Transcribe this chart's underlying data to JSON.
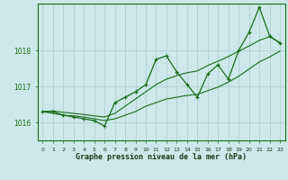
{
  "x": [
    0,
    1,
    2,
    3,
    4,
    5,
    6,
    7,
    8,
    9,
    10,
    11,
    12,
    13,
    14,
    15,
    16,
    17,
    18,
    19,
    20,
    21,
    22,
    23
  ],
  "y_main": [
    1016.3,
    1016.3,
    1016.2,
    1016.15,
    1016.1,
    1016.05,
    1015.9,
    1016.55,
    1016.7,
    1016.85,
    1017.05,
    1017.75,
    1017.85,
    1017.4,
    1017.05,
    1016.7,
    1017.35,
    1017.6,
    1017.2,
    1018.0,
    1018.5,
    1019.2,
    1018.4,
    1018.2
  ],
  "y_low": [
    1016.3,
    1016.25,
    1016.2,
    1016.18,
    1016.15,
    1016.1,
    1016.05,
    1016.1,
    1016.2,
    1016.3,
    1016.45,
    1016.55,
    1016.65,
    1016.7,
    1016.75,
    1016.78,
    1016.88,
    1016.98,
    1017.12,
    1017.28,
    1017.48,
    1017.68,
    1017.82,
    1017.98
  ],
  "y_high": [
    1016.3,
    1016.32,
    1016.28,
    1016.25,
    1016.22,
    1016.18,
    1016.15,
    1016.25,
    1016.45,
    1016.65,
    1016.85,
    1017.05,
    1017.2,
    1017.3,
    1017.38,
    1017.43,
    1017.58,
    1017.7,
    1017.83,
    1017.98,
    1018.12,
    1018.28,
    1018.38,
    1018.22
  ],
  "line_color": "#1a6b1a",
  "bg_color": "#cce8e8",
  "grid_color": "#aacccc",
  "xlabel": "Graphe pression niveau de la mer (hPa)",
  "ylim": [
    1015.5,
    1019.3
  ],
  "yticks": [
    1016,
    1017,
    1018
  ],
  "xticks": [
    0,
    1,
    2,
    3,
    4,
    5,
    6,
    7,
    8,
    9,
    10,
    11,
    12,
    13,
    14,
    15,
    16,
    17,
    18,
    19,
    20,
    21,
    22,
    23
  ]
}
